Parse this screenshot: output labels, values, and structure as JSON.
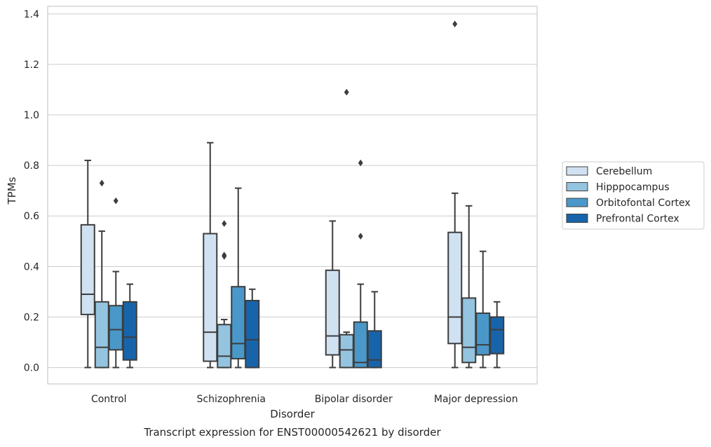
{
  "chart_data": {
    "type": "box",
    "caption": "Transcript expression for ENST00000542621 by disorder",
    "xlabel": "Disorder",
    "ylabel": "TPMs",
    "ylim": [
      -0.065,
      1.43
    ],
    "yticks": [
      0.0,
      0.2,
      0.4,
      0.6,
      0.8,
      1.0,
      1.2,
      1.4
    ],
    "ytick_labels": [
      "0.0",
      "0.2",
      "0.4",
      "0.6",
      "0.8",
      "1.0",
      "1.2",
      "1.4"
    ],
    "grid": "horizontal",
    "legend_position": "right",
    "categories": [
      "Control",
      "Schizophrenia",
      "Bipolar disorder",
      "Major depression"
    ],
    "series": [
      {
        "name": "Cerebellum",
        "color": "#d0e1f2",
        "boxes": [
          {
            "whisker_low": 0.0,
            "q1": 0.21,
            "median": 0.29,
            "q3": 0.565,
            "whisker_high": 0.82,
            "outliers": []
          },
          {
            "whisker_low": 0.0,
            "q1": 0.025,
            "median": 0.14,
            "q3": 0.53,
            "whisker_high": 0.89,
            "outliers": []
          },
          {
            "whisker_low": 0.0,
            "q1": 0.05,
            "median": 0.125,
            "q3": 0.385,
            "whisker_high": 0.58,
            "outliers": []
          },
          {
            "whisker_low": 0.0,
            "q1": 0.095,
            "median": 0.2,
            "q3": 0.535,
            "whisker_high": 0.69,
            "outliers": [
              1.36
            ]
          }
        ]
      },
      {
        "name": "Hipppocampus",
        "color": "#94c4df",
        "boxes": [
          {
            "whisker_low": 0.0,
            "q1": 0.0,
            "median": 0.08,
            "q3": 0.26,
            "whisker_high": 0.54,
            "outliers": [
              0.73
            ]
          },
          {
            "whisker_low": 0.0,
            "q1": 0.0,
            "median": 0.045,
            "q3": 0.17,
            "whisker_high": 0.19,
            "outliers": [
              0.44,
              0.445,
              0.57
            ]
          },
          {
            "whisker_low": 0.0,
            "q1": 0.0,
            "median": 0.07,
            "q3": 0.13,
            "whisker_high": 0.14,
            "outliers": [
              1.09
            ]
          },
          {
            "whisker_low": 0.0,
            "q1": 0.02,
            "median": 0.08,
            "q3": 0.275,
            "whisker_high": 0.64,
            "outliers": []
          }
        ]
      },
      {
        "name": "Orbitofontal Cortex",
        "color": "#4a98c9",
        "boxes": [
          {
            "whisker_low": 0.0,
            "q1": 0.07,
            "median": 0.15,
            "q3": 0.245,
            "whisker_high": 0.38,
            "outliers": [
              0.66
            ]
          },
          {
            "whisker_low": 0.0,
            "q1": 0.035,
            "median": 0.095,
            "q3": 0.32,
            "whisker_high": 0.71,
            "outliers": []
          },
          {
            "whisker_low": 0.0,
            "q1": 0.0,
            "median": 0.02,
            "q3": 0.18,
            "whisker_high": 0.33,
            "outliers": [
              0.52,
              0.81
            ]
          },
          {
            "whisker_low": 0.0,
            "q1": 0.05,
            "median": 0.09,
            "q3": 0.215,
            "whisker_high": 0.46,
            "outliers": []
          }
        ]
      },
      {
        "name": "Prefrontal Cortex",
        "color": "#1764ab",
        "boxes": [
          {
            "whisker_low": 0.0,
            "q1": 0.03,
            "median": 0.12,
            "q3": 0.26,
            "whisker_high": 0.33,
            "outliers": []
          },
          {
            "whisker_low": 0.0,
            "q1": 0.0,
            "median": 0.11,
            "q3": 0.265,
            "whisker_high": 0.31,
            "outliers": []
          },
          {
            "whisker_low": 0.0,
            "q1": 0.0,
            "median": 0.03,
            "q3": 0.145,
            "whisker_high": 0.3,
            "outliers": []
          },
          {
            "whisker_low": 0.0,
            "q1": 0.055,
            "median": 0.15,
            "q3": 0.2,
            "whisker_high": 0.26,
            "outliers": []
          }
        ]
      }
    ]
  }
}
